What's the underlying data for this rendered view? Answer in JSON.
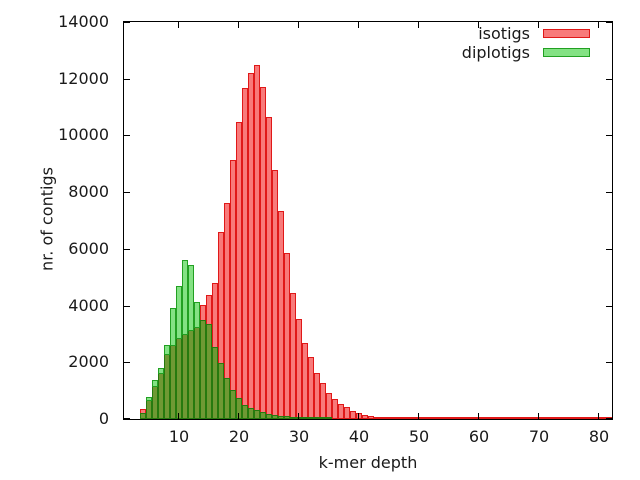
{
  "figure": {
    "background": "#ffffff",
    "xlabel": "k-mer depth",
    "ylabel": "nr. of contigs",
    "legend": {
      "position": "top-right",
      "items": [
        {
          "label": "isotigs",
          "fill": "#f87a7a",
          "border": "#e01818"
        },
        {
          "label": "diplotigs",
          "fill": "#84e284",
          "border": "#22a022"
        }
      ]
    },
    "overlap": {
      "fill": "#6f9934",
      "border": "#267a0e"
    }
  },
  "chart_data": {
    "type": "bar",
    "title": "",
    "xlabel": "k-mer depth",
    "ylabel": "nr. of contigs",
    "xlim": [
      0.7,
      82.2
    ],
    "ylim": [
      0,
      14000
    ],
    "grid": false,
    "legend_position": "top-right",
    "bin_width": 1,
    "xticks": [
      10,
      20,
      30,
      40,
      50,
      60,
      70,
      80
    ],
    "yticks": [
      0,
      2000,
      4000,
      6000,
      8000,
      10000,
      12000,
      14000
    ],
    "x": [
      4,
      5,
      6,
      7,
      8,
      9,
      10,
      11,
      12,
      13,
      14,
      15,
      16,
      17,
      18,
      19,
      20,
      21,
      22,
      23,
      24,
      25,
      26,
      27,
      28,
      29,
      30,
      31,
      32,
      33,
      34,
      35,
      36,
      37,
      38,
      39,
      40,
      41,
      42,
      43,
      44,
      45,
      46,
      47,
      48,
      49,
      50,
      51,
      52,
      53,
      54,
      55,
      56,
      57,
      58,
      59,
      60,
      61,
      62,
      63,
      64,
      65,
      66,
      67,
      68,
      69,
      70,
      71,
      72,
      73,
      74,
      75,
      76,
      77,
      78,
      79,
      80,
      81,
      82
    ],
    "series": [
      {
        "name": "isotigs",
        "fill": "#f87a7a",
        "border": "#e01818",
        "values": [
          340,
          670,
          1175,
          1620,
          2300,
          2600,
          2850,
          3000,
          3140,
          3260,
          4020,
          4370,
          4800,
          6600,
          7620,
          9130,
          10470,
          11670,
          12200,
          12480,
          11710,
          10650,
          8780,
          7350,
          5850,
          4450,
          3530,
          2680,
          2190,
          1620,
          1270,
          920,
          700,
          530,
          420,
          290,
          220,
          150,
          110,
          80,
          70,
          60,
          55,
          50,
          45,
          40,
          40,
          35,
          35,
          30,
          25,
          20,
          20,
          15,
          15,
          15,
          15,
          15,
          10,
          10,
          10,
          10,
          10,
          10,
          10,
          10,
          5,
          5,
          5,
          15,
          15,
          15,
          15,
          15,
          15,
          10,
          5,
          30,
          40
        ]
      },
      {
        "name": "diplotigs",
        "fill": "#84e284",
        "border": "#22a022",
        "values": [
          220,
          780,
          1380,
          1810,
          2600,
          3900,
          4700,
          5600,
          5430,
          4130,
          3490,
          3350,
          2550,
          1975,
          1450,
          1020,
          740,
          500,
          390,
          300,
          230,
          180,
          140,
          110,
          90,
          75,
          60,
          50,
          45,
          40,
          35,
          30,
          0,
          0,
          0,
          0,
          0,
          0,
          0,
          0,
          0,
          0,
          0,
          0,
          0,
          0,
          0,
          0,
          0,
          0,
          0,
          0,
          0,
          0,
          0,
          0,
          0,
          0,
          0,
          0,
          0,
          0,
          0,
          0,
          0,
          0,
          0,
          0,
          0,
          0,
          0,
          0,
          0,
          0,
          0,
          0,
          0,
          0,
          0
        ]
      }
    ],
    "overlap_fill": "#6f9934",
    "overlap_border": "#267a0e"
  }
}
